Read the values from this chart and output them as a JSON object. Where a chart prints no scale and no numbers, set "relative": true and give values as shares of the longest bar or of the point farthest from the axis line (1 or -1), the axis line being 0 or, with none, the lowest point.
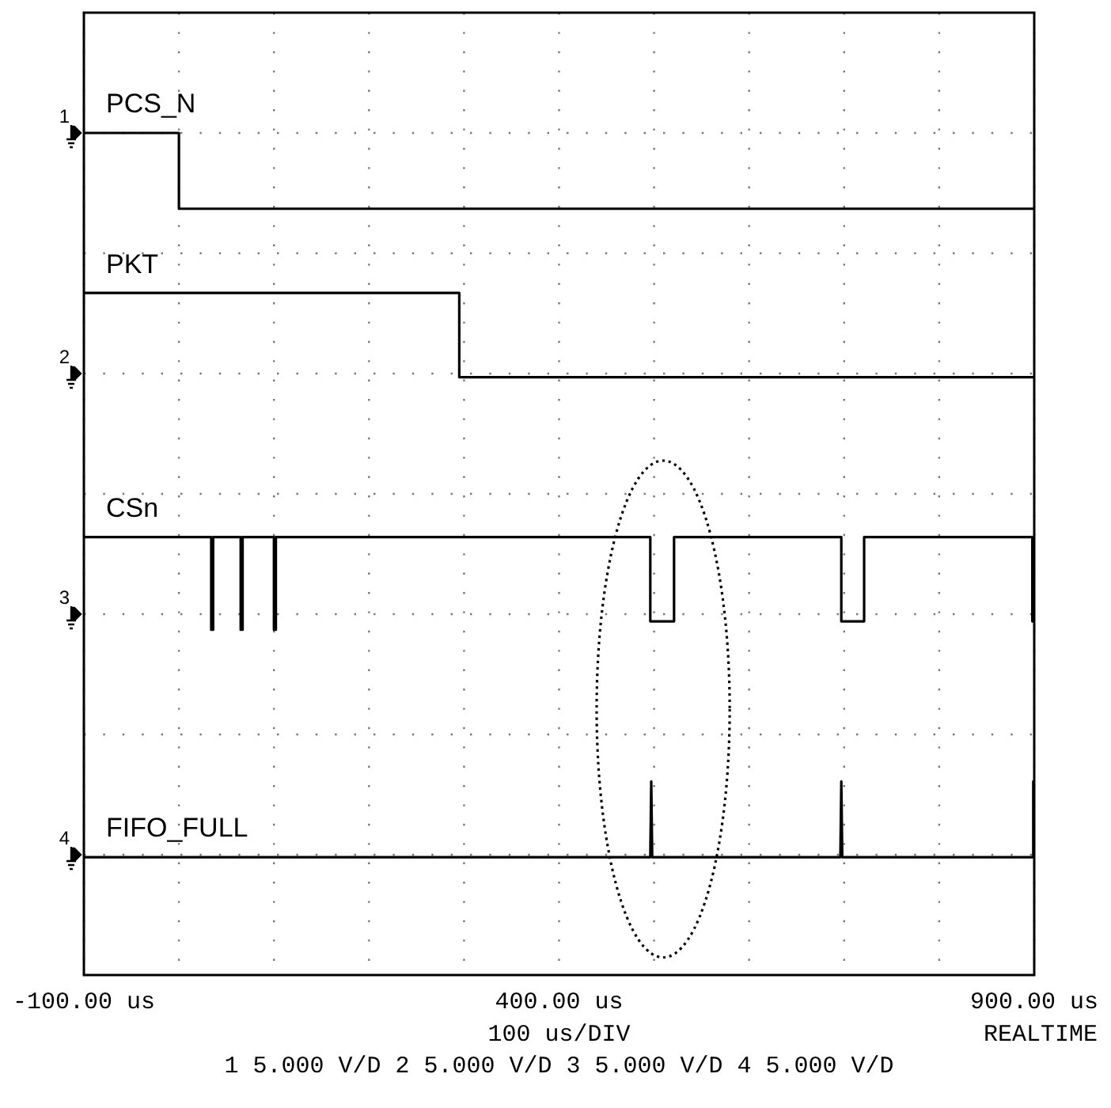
{
  "chart_data": {
    "type": "line",
    "relative": true,
    "grid": true,
    "legend": false,
    "line_style": "solid",
    "xlim": [
      -100,
      900
    ],
    "xticks": [
      {
        "value": -100,
        "label": "-100.00 us"
      },
      {
        "value": 0,
        "label": null
      },
      {
        "value": 100,
        "label": null
      },
      {
        "value": 200,
        "label": null
      },
      {
        "value": 300,
        "label": null
      },
      {
        "value": 400,
        "label": "400.00 us"
      },
      {
        "value": 500,
        "label": null
      },
      {
        "value": 600,
        "label": null
      },
      {
        "value": 700,
        "label": null
      },
      {
        "value": 800,
        "label": null
      },
      {
        "value": 900,
        "label": "900.00 us"
      }
    ],
    "series": [
      {
        "name": "PCS_N",
        "color": "#000000",
        "x": [
          -100,
          0,
          0,
          900
        ],
        "values": [
          1.0,
          1.0,
          0.91,
          0.91
        ]
      },
      {
        "name": "PKT",
        "color": "#000000",
        "x": [
          -100,
          295,
          295,
          900
        ],
        "values": [
          0.81,
          0.81,
          0.71,
          0.71
        ]
      },
      {
        "name": "CSn",
        "color": "#000000",
        "x": [
          -100,
          34,
          34,
          36,
          36,
          65,
          65,
          67,
          67,
          100,
          100,
          102,
          102,
          496,
          496,
          521,
          521,
          697,
          697,
          721,
          721,
          898,
          898,
          900
        ],
        "values": [
          0.52,
          0.52,
          0.41,
          0.41,
          0.52,
          0.52,
          0.41,
          0.41,
          0.52,
          0.52,
          0.41,
          0.41,
          0.52,
          0.52,
          0.42,
          0.42,
          0.52,
          0.52,
          0.42,
          0.42,
          0.52,
          0.52,
          0.42,
          0.42
        ]
      },
      {
        "name": "FIFO_FULL",
        "color": "#000000",
        "x": [
          -100,
          496,
          497,
          498,
          696,
          697,
          698,
          898,
          899,
          900
        ],
        "values": [
          0.14,
          0.14,
          0.23,
          0.14,
          0.14,
          0.23,
          0.14,
          0.14,
          0.23,
          0.23
        ]
      }
    ],
    "annotations": [
      "1",
      "2",
      "3",
      "4",
      "100 us/DIV",
      "REALTIME",
      "1 5.000 V/D 2 5.000 V/D 3 5.000 V/D 4 5.000 V/D"
    ]
  }
}
